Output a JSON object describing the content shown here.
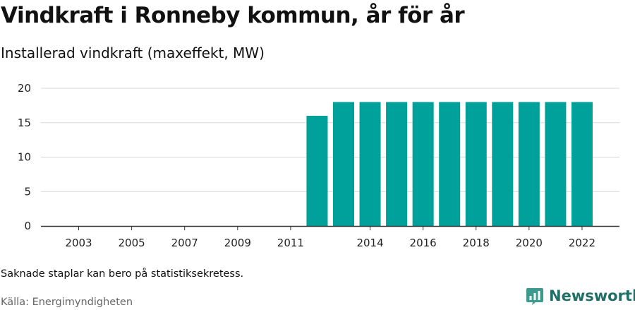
{
  "header": {
    "title": "Vindkraft i Ronneby kommun, år för år",
    "subtitle": "Installerad vindkraft (maxeffekt, MW)"
  },
  "footer": {
    "note": "Saknade staplar kan bero på statistiksekretess.",
    "source": "Källa: Energimyndigheten",
    "brand": "Newsworthy",
    "brand_icon": "bar-chart-logo-icon"
  },
  "colors": {
    "bar": "#00a19a",
    "grid": "#d9d9d9",
    "axis": "#333333",
    "brand": "#1f6f67"
  },
  "chart_data": {
    "type": "bar",
    "x": [
      2003,
      2004,
      2005,
      2006,
      2007,
      2008,
      2009,
      2010,
      2011,
      2012,
      2013,
      2014,
      2015,
      2016,
      2017,
      2018,
      2019,
      2020,
      2021,
      2022
    ],
    "values": [
      null,
      null,
      null,
      null,
      null,
      null,
      null,
      null,
      null,
      16,
      18,
      18,
      18,
      18,
      18,
      18,
      18,
      18,
      18,
      18
    ],
    "x_tick_labels": [
      2003,
      2005,
      2007,
      2009,
      2011,
      2014,
      2016,
      2018,
      2020,
      2022
    ],
    "y_ticks": [
      0,
      5,
      10,
      15,
      20
    ],
    "ylim": [
      0,
      20
    ],
    "xlabel": "",
    "ylabel": "",
    "grid": true,
    "legend": "none"
  }
}
